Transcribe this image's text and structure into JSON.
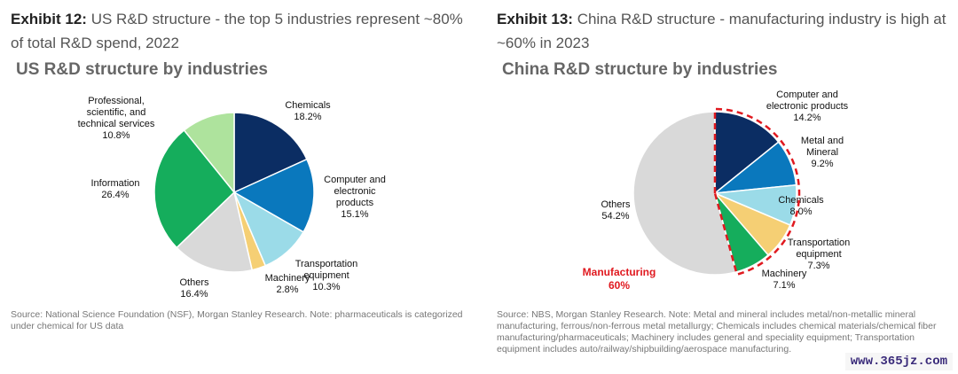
{
  "left": {
    "exhibit_label": "Exhibit 12:",
    "exhibit_text": "US R&D structure - the top 5 industries represent ~80% of total R&D spend, 2022",
    "subtitle": "US R&D structure by industries",
    "note": "Source: National Science Foundation (NSF), Morgan Stanley Research. Note: pharmaceuticals is categorized under chemical for US data"
  },
  "right": {
    "exhibit_label": "Exhibit 13:",
    "exhibit_text": "China R&D structure - manufacturing industry is high at ~60% in 2023",
    "subtitle": "China R&D structure by industries",
    "note": "Source: NBS, Morgan Stanley Research. Note: Metal and mineral includes metal/non-metallic mineral manufacturing, ferrous/non-ferrous metal metallurgy; Chemicals includes chemical materials/chemical fiber manufacturing/pharmaceuticals; Machinery includes general and speciality equipment; Transportation equipment includes auto/railway/shipbuilding/aerospace manufacturing."
  },
  "watermark": "www.365jz.com",
  "chart_data": [
    {
      "type": "pie",
      "title": "US R&D structure by industries",
      "slices": [
        {
          "label": [
            "Chemicals"
          ],
          "value": 18.2,
          "value_label": "18.2%",
          "color": "#0b2d63"
        },
        {
          "label": [
            "Computer and",
            "electronic",
            "products"
          ],
          "value": 15.1,
          "value_label": "15.1%",
          "color": "#0a78bd"
        },
        {
          "label": [
            "Transportation",
            "equipment"
          ],
          "value": 10.3,
          "value_label": "10.3%",
          "color": "#9bdbe8"
        },
        {
          "label": [
            "Machinery"
          ],
          "value": 2.8,
          "value_label": "2.8%",
          "color": "#f5cf74"
        },
        {
          "label": [
            "Others"
          ],
          "value": 16.4,
          "value_label": "16.4%",
          "color": "#d9d9d9"
        },
        {
          "label": [
            "Information"
          ],
          "value": 26.4,
          "value_label": "26.4%",
          "color": "#15ad5c"
        },
        {
          "label": [
            "Professional,",
            "scientific, and",
            "technical services"
          ],
          "value": 10.8,
          "value_label": "10.8%",
          "color": "#aee39d"
        }
      ]
    },
    {
      "type": "pie",
      "title": "China R&D structure by industries",
      "slices": [
        {
          "label": [
            "Computer and",
            "electronic products"
          ],
          "value": 14.2,
          "value_label": "14.2%",
          "color": "#0b2d63"
        },
        {
          "label": [
            "Metal and",
            "Mineral"
          ],
          "value": 9.2,
          "value_label": "9.2%",
          "color": "#0a78bd"
        },
        {
          "label": [
            "Chemicals"
          ],
          "value": 8.0,
          "value_label": "8.0%",
          "color": "#9bdbe8"
        },
        {
          "label": [
            "Transportation",
            "equipment"
          ],
          "value": 7.3,
          "value_label": "7.3%",
          "color": "#f5cf74"
        },
        {
          "label": [
            "Machinery"
          ],
          "value": 7.1,
          "value_label": "7.1%",
          "color": "#15ad5c"
        },
        {
          "label": [
            "Others"
          ],
          "value": 54.2,
          "value_label": "54.2%",
          "color": "#d9d9d9"
        }
      ],
      "highlight": {
        "label": "Manufacturing",
        "value_label": "60%",
        "color": "#e0191f"
      }
    }
  ]
}
